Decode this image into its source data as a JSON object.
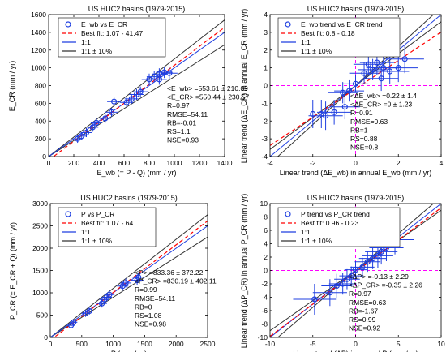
{
  "chart_data": [
    {
      "type": "scatter",
      "title": "US HUC2 basins (1979-2015)",
      "xlabel": "E_wb (= P - Q) (mm / yr)",
      "ylabel": "E_CR (mm / yr)",
      "xlim": [
        0,
        1400
      ],
      "ylim": [
        0,
        1600
      ],
      "xticks": [
        "0",
        "200",
        "400",
        "600",
        "800",
        "1000",
        "1200",
        "1400"
      ],
      "yticks": [
        "0",
        "200",
        "400",
        "600",
        "800",
        "1000",
        "1200",
        "1400",
        "1600"
      ],
      "grid": false,
      "legend_position": "top-left",
      "legend": [
        "E_wb vs E_CR",
        "Best fit: 1.07 - 41.47",
        "1:1",
        "1:1 ± 10%"
      ],
      "fit": {
        "slope": 1.07,
        "intercept": -41.47
      },
      "band": 0.1,
      "stats": [
        "<E_wb> =553.61 ± 210.09",
        "<E_CR> =550.44 ± 230.57",
        "R=0.97",
        "RMSE=54.11",
        "RB=-0.01",
        "RS=1.1",
        "NSE=0.93"
      ],
      "points": [
        {
          "x": 230,
          "y": 200,
          "xerr": 40,
          "yerr": 45
        },
        {
          "x": 260,
          "y": 230,
          "xerr": 40,
          "yerr": 45
        },
        {
          "x": 300,
          "y": 270,
          "xerr": 45,
          "yerr": 50
        },
        {
          "x": 350,
          "y": 330,
          "xerr": 45,
          "yerr": 50
        },
        {
          "x": 380,
          "y": 380,
          "xerr": 45,
          "yerr": 50
        },
        {
          "x": 450,
          "y": 430,
          "xerr": 45,
          "yerr": 50
        },
        {
          "x": 500,
          "y": 500,
          "xerr": 50,
          "yerr": 50
        },
        {
          "x": 520,
          "y": 620,
          "xerr": 55,
          "yerr": 55
        },
        {
          "x": 620,
          "y": 610,
          "xerr": 55,
          "yerr": 55
        },
        {
          "x": 660,
          "y": 650,
          "xerr": 55,
          "yerr": 55
        },
        {
          "x": 700,
          "y": 700,
          "xerr": 60,
          "yerr": 60
        },
        {
          "x": 730,
          "y": 730,
          "xerr": 60,
          "yerr": 60
        },
        {
          "x": 800,
          "y": 870,
          "xerr": 60,
          "yerr": 65
        },
        {
          "x": 840,
          "y": 900,
          "xerr": 60,
          "yerr": 65
        },
        {
          "x": 880,
          "y": 930,
          "xerr": 60,
          "yerr": 65
        },
        {
          "x": 920,
          "y": 950,
          "xerr": 65,
          "yerr": 65
        },
        {
          "x": 960,
          "y": 940,
          "xerr": 65,
          "yerr": 65
        },
        {
          "x": 880,
          "y": 870,
          "xerr": 60,
          "yerr": 60
        }
      ]
    },
    {
      "type": "scatter",
      "title": "US HUC2 basins (1979-2015)",
      "xlabel": "Linear trend (ΔE_wb) in annual E_wb (mm / yr)",
      "ylabel": "Linear trend (ΔE_CR) in annual E_CR (mm / yr)",
      "xlim": [
        -4,
        4
      ],
      "ylim": [
        -4,
        4
      ],
      "xticks": [
        "-4",
        "-2",
        "0",
        "2",
        "4"
      ],
      "yticks": [
        "-4",
        "-3",
        "-2",
        "-1",
        "0",
        "1",
        "2",
        "3",
        "4"
      ],
      "grid": false,
      "legend_position": "top-left",
      "legend": [
        "E_wb trend vs E_CR trend",
        "Best fit: 0.8 - 0.18",
        "1:1",
        "1:1 ± 10%"
      ],
      "fit": {
        "slope": 0.8,
        "intercept": -0.18
      },
      "band": 0.1,
      "stats": [
        "<ΔE_wb> =0.22 ± 1.4",
        "<ΔE_CR> =0 ± 1.23",
        "R=0.91",
        "RMSE=0.63",
        "RB=1",
        "RS=0.88",
        "NSE=0.8"
      ],
      "points": [
        {
          "x": -2.0,
          "y": -1.6,
          "xerr": 0.9,
          "yerr": 0.8
        },
        {
          "x": -1.6,
          "y": -1.6,
          "xerr": 0.9,
          "yerr": 0.8
        },
        {
          "x": -1.4,
          "y": -1.7,
          "xerr": 0.8,
          "yerr": 0.8
        },
        {
          "x": -1.0,
          "y": -1.5,
          "xerr": 0.8,
          "yerr": 0.7
        },
        {
          "x": -0.6,
          "y": -0.4,
          "xerr": 0.7,
          "yerr": 0.6
        },
        {
          "x": -0.5,
          "y": -1.2,
          "xerr": 0.7,
          "yerr": 0.7
        },
        {
          "x": -0.3,
          "y": -0.3,
          "xerr": 0.7,
          "yerr": 0.6
        },
        {
          "x": 0.0,
          "y": 0.1,
          "xerr": 0.6,
          "yerr": 0.5
        },
        {
          "x": 0.4,
          "y": 0.7,
          "xerr": 0.7,
          "yerr": 0.6
        },
        {
          "x": 0.6,
          "y": 1.2,
          "xerr": 0.7,
          "yerr": 0.6
        },
        {
          "x": 0.8,
          "y": 0.9,
          "xerr": 0.7,
          "yerr": 0.6
        },
        {
          "x": 1.0,
          "y": 1.3,
          "xerr": 0.8,
          "yerr": 0.7
        },
        {
          "x": 1.2,
          "y": 0.4,
          "xerr": 0.8,
          "yerr": 0.7
        },
        {
          "x": 1.3,
          "y": 1.0,
          "xerr": 0.8,
          "yerr": 0.7
        },
        {
          "x": 1.6,
          "y": 0.8,
          "xerr": 0.9,
          "yerr": 0.7
        },
        {
          "x": 2.0,
          "y": 1.0,
          "xerr": 0.9,
          "yerr": 0.8
        },
        {
          "x": 2.3,
          "y": 1.5,
          "xerr": 0.9,
          "yerr": 0.8
        }
      ]
    },
    {
      "type": "scatter",
      "title": "US HUC2 basins (1979-2015)",
      "xlabel": "P (mm / yr)",
      "ylabel": "P_CR (= E_CR + Q) (mm / yr)",
      "xlim": [
        0,
        2500
      ],
      "ylim": [
        0,
        3000
      ],
      "xticks": [
        "0",
        "500",
        "1000",
        "1500",
        "2000",
        "2500"
      ],
      "yticks": [
        "0",
        "500",
        "1000",
        "1500",
        "2000",
        "2500",
        "3000"
      ],
      "grid": false,
      "legend_position": "top-left",
      "legend": [
        "P vs P_CR",
        "Best fit: 1.07 - 64",
        "1:1",
        "1:1 ± 10%"
      ],
      "fit": {
        "slope": 1.07,
        "intercept": -64
      },
      "band": 0.1,
      "stats": [
        "<P> =833.36 ± 372.22",
        "<P_CR> =830.19 ± 402.11",
        "R=0.99",
        "RMSE=54.11",
        "RB=0",
        "RS=1.08",
        "NSE=0.98"
      ],
      "points": [
        {
          "x": 330,
          "y": 270,
          "xerr": 60,
          "yerr": 70
        },
        {
          "x": 370,
          "y": 340,
          "xerr": 60,
          "yerr": 70
        },
        {
          "x": 560,
          "y": 540,
          "xerr": 70,
          "yerr": 80
        },
        {
          "x": 620,
          "y": 590,
          "xerr": 70,
          "yerr": 80
        },
        {
          "x": 820,
          "y": 760,
          "xerr": 80,
          "yerr": 90
        },
        {
          "x": 860,
          "y": 850,
          "xerr": 80,
          "yerr": 90
        },
        {
          "x": 900,
          "y": 900,
          "xerr": 80,
          "yerr": 90
        },
        {
          "x": 940,
          "y": 960,
          "xerr": 80,
          "yerr": 90
        },
        {
          "x": 1150,
          "y": 1150,
          "xerr": 90,
          "yerr": 100
        },
        {
          "x": 1200,
          "y": 1220,
          "xerr": 90,
          "yerr": 100
        },
        {
          "x": 1380,
          "y": 1280,
          "xerr": 100,
          "yerr": 110
        },
        {
          "x": 1400,
          "y": 1350,
          "xerr": 100,
          "yerr": 110
        }
      ]
    },
    {
      "type": "scatter",
      "title": "US HUC2 basins (1979-2015)",
      "xlabel": "Linear trend (ΔP) in annual P (mm / yr)",
      "ylabel": "Linear trend (ΔP_CR) in annual P_CR (mm / yr)",
      "xlim": [
        -10,
        10
      ],
      "ylim": [
        -10,
        10
      ],
      "xticks": [
        "-10",
        "-5",
        "0",
        "5",
        "10"
      ],
      "yticks": [
        "-10",
        "-8",
        "-6",
        "-4",
        "-2",
        "0",
        "2",
        "4",
        "6",
        "8",
        "10"
      ],
      "grid": false,
      "legend_position": "top-left",
      "legend": [
        "P trend vs P_CR trend",
        "Best fit: 0.96 - 0.23",
        "1:1",
        "1:1 ± 10%"
      ],
      "fit": {
        "slope": 0.96,
        "intercept": -0.23
      },
      "band": 0.1,
      "stats": [
        "<ΔP> =-0.13 ± 2.29",
        "<ΔP_CR> =-0.35 ± 2.26",
        "R=0.97",
        "RMSE=0.63",
        "RB=-1.67",
        "RS=0.99",
        "NSE=0.92"
      ],
      "points": [
        {
          "x": -4.8,
          "y": -4.3,
          "xerr": 2.5,
          "yerr": 2.3
        },
        {
          "x": -3.0,
          "y": -3.3,
          "xerr": 2.0,
          "yerr": 2.0
        },
        {
          "x": -2.2,
          "y": -2.3,
          "xerr": 1.8,
          "yerr": 1.8
        },
        {
          "x": -1.5,
          "y": -2.0,
          "xerr": 1.6,
          "yerr": 1.6
        },
        {
          "x": -1.0,
          "y": -1.3,
          "xerr": 1.5,
          "yerr": 1.5
        },
        {
          "x": -0.5,
          "y": -0.8,
          "xerr": 1.4,
          "yerr": 1.4
        },
        {
          "x": 0.0,
          "y": 0.1,
          "xerr": 1.3,
          "yerr": 1.3
        },
        {
          "x": 0.8,
          "y": 0.5,
          "xerr": 1.4,
          "yerr": 1.4
        },
        {
          "x": 1.4,
          "y": 1.3,
          "xerr": 1.5,
          "yerr": 1.5
        },
        {
          "x": 2.0,
          "y": 1.8,
          "xerr": 1.6,
          "yerr": 1.6
        },
        {
          "x": 2.6,
          "y": 2.2,
          "xerr": 1.8,
          "yerr": 1.8
        },
        {
          "x": 3.0,
          "y": 2.8,
          "xerr": 1.9,
          "yerr": 1.9
        },
        {
          "x": 3.6,
          "y": 3.4,
          "xerr": 2.0,
          "yerr": 2.0
        },
        {
          "x": 4.6,
          "y": 4.6,
          "xerr": 2.2,
          "yerr": 2.2
        }
      ]
    }
  ],
  "colors": {
    "points": "#1f3fe0",
    "fit": "#ff0000",
    "one_to_one": "#1f3fe0",
    "band": "#333333",
    "zero_lines": "#ff00ff"
  }
}
